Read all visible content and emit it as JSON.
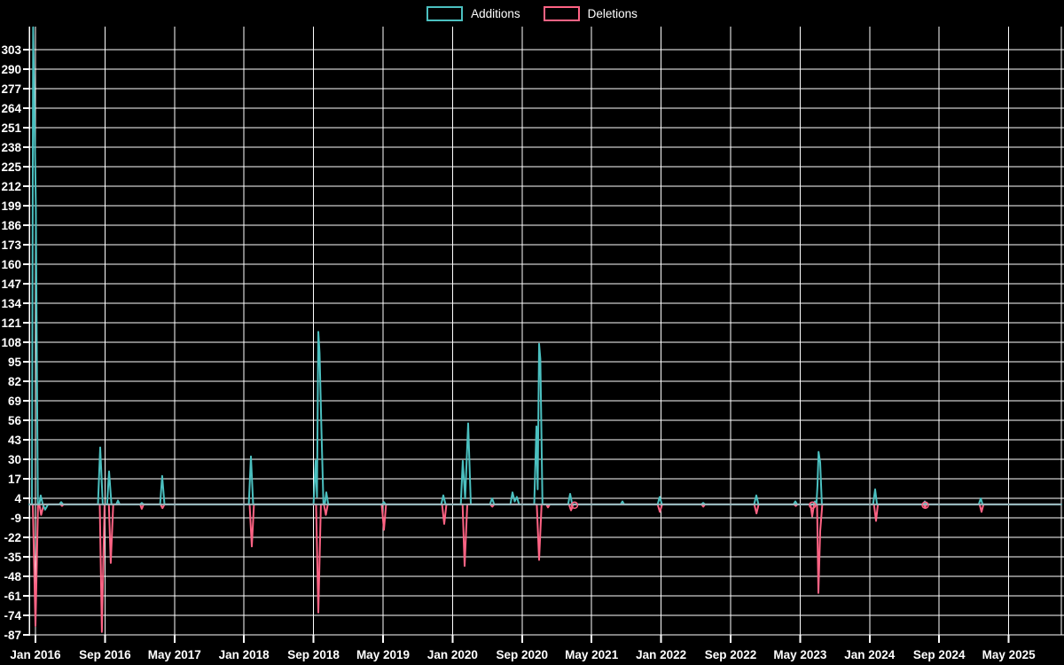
{
  "chart_data": {
    "type": "line",
    "title": "",
    "background_color": "#000000",
    "grid_color": "#ffffff",
    "text_color": "#ffffff",
    "zero_line_color": "#9fb9bd",
    "legend_position": "top-center",
    "legend": [
      {
        "label": "Additions",
        "color": "#4bc0c0"
      },
      {
        "label": "Deletions",
        "color": "#ff6384"
      }
    ],
    "x_axis": {
      "unit": "months since Jan 2016",
      "tick_labels": [
        "Jan 2016",
        "Sep 2016",
        "May 2017",
        "Jan 2018",
        "Sep 2018",
        "May 2019",
        "Jan 2020",
        "Sep 2020",
        "May 2021",
        "Jan 2022",
        "Sep 2022",
        "May 2023",
        "Jan 2024",
        "Sep 2024",
        "May 2025"
      ],
      "tick_months": [
        0,
        8,
        16,
        24,
        32,
        40,
        48,
        56,
        64,
        72,
        80,
        88,
        96,
        104,
        112
      ],
      "domain_months": [
        -0.71,
        118.06
      ],
      "grid": true
    },
    "y_axis": {
      "tick_values": [
        303,
        290,
        277,
        264,
        251,
        238,
        225,
        212,
        199,
        186,
        173,
        160,
        147,
        134,
        121,
        108,
        95,
        82,
        69,
        56,
        43,
        30,
        17,
        4,
        -9,
        -22,
        -35,
        -48,
        -61,
        -74,
        -87
      ],
      "domain": [
        -89.3,
        318.4
      ],
      "grid": true
    },
    "series": [
      {
        "name": "Additions",
        "color": "#4bc0c0",
        "points": [
          [
            -0.71,
            0
          ],
          [
            -0.4,
            0
          ],
          [
            -0.26,
            318
          ],
          [
            0.05,
            200
          ],
          [
            0.28,
            0
          ],
          [
            0.45,
            0
          ],
          [
            0.61,
            6
          ],
          [
            0.85,
            0
          ],
          [
            1.12,
            -3.5
          ],
          [
            1.45,
            0
          ],
          [
            2.75,
            0
          ],
          [
            2.96,
            1.5
          ],
          [
            3.2,
            0
          ],
          [
            7.2,
            0
          ],
          [
            7.45,
            38
          ],
          [
            7.75,
            0
          ],
          [
            8.25,
            0
          ],
          [
            8.47,
            22
          ],
          [
            8.75,
            0
          ],
          [
            9.3,
            0
          ],
          [
            9.49,
            2.5
          ],
          [
            9.7,
            0
          ],
          [
            12.05,
            0
          ],
          [
            12.24,
            1
          ],
          [
            12.45,
            0
          ],
          [
            14.35,
            0
          ],
          [
            14.59,
            19
          ],
          [
            14.85,
            0
          ],
          [
            24.55,
            0
          ],
          [
            24.8,
            32
          ],
          [
            25.05,
            0
          ],
          [
            32.0,
            0
          ],
          [
            32.24,
            29
          ],
          [
            32.4,
            5
          ],
          [
            32.55,
            115
          ],
          [
            32.7,
            101
          ],
          [
            32.91,
            50
          ],
          [
            33.15,
            0
          ],
          [
            33.3,
            0
          ],
          [
            33.47,
            8
          ],
          [
            33.7,
            0
          ],
          [
            39.9,
            0
          ],
          [
            40.1,
            1.5
          ],
          [
            40.3,
            0
          ],
          [
            46.7,
            0
          ],
          [
            46.94,
            6
          ],
          [
            47.2,
            0
          ],
          [
            48.95,
            0
          ],
          [
            49.18,
            29
          ],
          [
            49.45,
            4
          ],
          [
            49.8,
            54
          ],
          [
            50.1,
            0
          ],
          [
            52.3,
            0
          ],
          [
            52.55,
            4
          ],
          [
            52.8,
            0
          ],
          [
            54.65,
            0
          ],
          [
            54.9,
            8
          ],
          [
            55.15,
            2
          ],
          [
            55.4,
            5
          ],
          [
            55.65,
            0
          ],
          [
            57.4,
            0
          ],
          [
            57.65,
            52
          ],
          [
            57.8,
            10
          ],
          [
            57.96,
            107
          ],
          [
            58.1,
            97
          ],
          [
            58.35,
            0
          ],
          [
            61.3,
            0
          ],
          [
            61.53,
            7
          ],
          [
            61.78,
            0
          ],
          [
            67.35,
            0
          ],
          [
            67.55,
            2
          ],
          [
            67.75,
            0
          ],
          [
            71.6,
            0
          ],
          [
            71.84,
            5
          ],
          [
            72.1,
            0
          ],
          [
            76.65,
            0
          ],
          [
            76.84,
            1
          ],
          [
            77.05,
            0
          ],
          [
            82.7,
            0
          ],
          [
            82.96,
            6
          ],
          [
            83.2,
            0
          ],
          [
            87.25,
            0
          ],
          [
            87.45,
            2
          ],
          [
            87.65,
            0
          ],
          [
            89.5,
            0
          ],
          [
            89.7,
            2
          ],
          [
            89.88,
            0
          ],
          [
            90.0,
            13
          ],
          [
            90.12,
            35
          ],
          [
            90.31,
            28
          ],
          [
            90.5,
            0
          ],
          [
            96.4,
            0
          ],
          [
            96.63,
            10
          ],
          [
            96.85,
            0
          ],
          [
            102.15,
            0
          ],
          [
            102.35,
            2
          ],
          [
            102.55,
            0
          ],
          [
            108.55,
            0
          ],
          [
            108.78,
            4
          ],
          [
            109.0,
            0
          ],
          [
            118.06,
            0
          ]
        ]
      },
      {
        "name": "Deletions",
        "color": "#ff6384",
        "points": [
          [
            -0.71,
            0
          ],
          [
            -0.3,
            0
          ],
          [
            0.0,
            -81
          ],
          [
            0.3,
            0
          ],
          [
            0.45,
            0
          ],
          [
            0.66,
            -7
          ],
          [
            0.95,
            0
          ],
          [
            2.9,
            0
          ],
          [
            3.06,
            -1
          ],
          [
            3.25,
            0
          ],
          [
            7.4,
            0
          ],
          [
            7.65,
            -85
          ],
          [
            7.95,
            0
          ],
          [
            8.45,
            0
          ],
          [
            8.67,
            -39
          ],
          [
            8.95,
            0
          ],
          [
            12.05,
            0
          ],
          [
            12.24,
            -3
          ],
          [
            12.45,
            0
          ],
          [
            14.4,
            0
          ],
          [
            14.62,
            -2.5
          ],
          [
            14.85,
            0
          ],
          [
            24.65,
            0
          ],
          [
            24.9,
            -28
          ],
          [
            25.15,
            0
          ],
          [
            32.3,
            0
          ],
          [
            32.55,
            -72
          ],
          [
            32.85,
            0
          ],
          [
            33.2,
            0
          ],
          [
            33.42,
            -7
          ],
          [
            33.65,
            0
          ],
          [
            39.85,
            0
          ],
          [
            40.1,
            -17
          ],
          [
            40.35,
            0
          ],
          [
            46.8,
            0
          ],
          [
            47.04,
            -13
          ],
          [
            47.3,
            0
          ],
          [
            49.15,
            0
          ],
          [
            49.39,
            -41
          ],
          [
            49.7,
            0
          ],
          [
            52.35,
            0
          ],
          [
            52.58,
            -1.5
          ],
          [
            52.8,
            0
          ],
          [
            57.7,
            0
          ],
          [
            57.96,
            -37
          ],
          [
            58.25,
            0
          ],
          [
            58.8,
            0
          ],
          [
            58.98,
            -2
          ],
          [
            59.2,
            0
          ],
          [
            61.4,
            0
          ],
          [
            61.63,
            -4
          ],
          [
            61.9,
            0
          ],
          [
            71.6,
            0
          ],
          [
            71.86,
            -5
          ],
          [
            72.12,
            0
          ],
          [
            76.65,
            0
          ],
          [
            76.86,
            -1.5
          ],
          [
            77.05,
            0
          ],
          [
            82.72,
            0
          ],
          [
            82.98,
            -6
          ],
          [
            83.22,
            0
          ],
          [
            87.3,
            0
          ],
          [
            87.5,
            -1
          ],
          [
            87.7,
            0
          ],
          [
            89.2,
            0
          ],
          [
            89.39,
            -8
          ],
          [
            89.6,
            0
          ],
          [
            89.95,
            0
          ],
          [
            90.1,
            -59
          ],
          [
            90.31,
            -18
          ],
          [
            90.55,
            0
          ],
          [
            96.5,
            0
          ],
          [
            96.73,
            -11
          ],
          [
            96.95,
            0
          ],
          [
            102.2,
            0
          ],
          [
            102.38,
            -2
          ],
          [
            102.55,
            0
          ],
          [
            108.65,
            0
          ],
          [
            108.88,
            -5
          ],
          [
            109.1,
            0
          ],
          [
            118.06,
            0
          ]
        ]
      }
    ],
    "point_markers": [
      {
        "series": "Deletions",
        "month": 62.04,
        "value": -0.5
      },
      {
        "series": "Deletions",
        "month": 89.42,
        "value": -0.5
      },
      {
        "series": "Deletions",
        "month": 102.4,
        "value": -0.5
      }
    ]
  }
}
